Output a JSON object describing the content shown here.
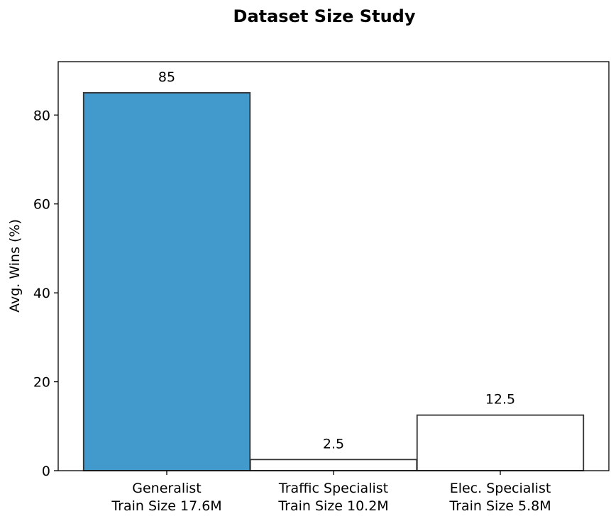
{
  "chart_data": {
    "type": "bar",
    "title": "Dataset Size Study",
    "xlabel": "",
    "ylabel": "Avg. Wins (%)",
    "ylim": [
      0,
      92
    ],
    "yticks": [
      0,
      20,
      40,
      60,
      80
    ],
    "grid": false,
    "categories": [
      [
        "Generalist",
        "Train Size 17.6M"
      ],
      [
        "Traffic Specialist",
        "Train Size 10.2M"
      ],
      [
        "Elec. Specialist",
        "Train Size 5.8M"
      ]
    ],
    "values": [
      85,
      2.5,
      12.5
    ],
    "value_labels": [
      "85",
      "2.5",
      "12.5"
    ],
    "bar_colors": [
      "#4199cc",
      "#ffffff",
      "#ffffff"
    ],
    "edge_color": "#333333"
  }
}
